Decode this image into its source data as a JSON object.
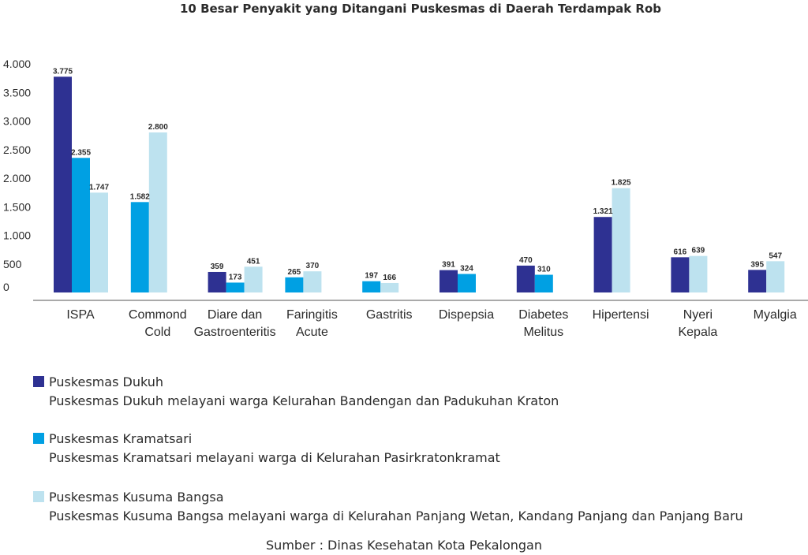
{
  "chart_data": {
    "type": "bar",
    "title": "10 Besar Penyakit yang Ditangani Puskesmas di Daerah Terdampak Rob",
    "categories": [
      [
        "ISPA"
      ],
      [
        "Commond",
        "Cold"
      ],
      [
        "Diare dan",
        "Gastroenteritis"
      ],
      [
        "Faringitis",
        "Acute"
      ],
      [
        "Gastritis"
      ],
      [
        "Dispepsia"
      ],
      [
        "Diabetes",
        "Melitus"
      ],
      [
        "Hipertensi"
      ],
      [
        "Nyeri",
        "Kepala"
      ],
      [
        "Myalgia"
      ]
    ],
    "series": [
      {
        "name": "Puskesmas Dukuh",
        "color": "#2e3192",
        "values": [
          3775,
          null,
          359,
          null,
          null,
          391,
          470,
          1321,
          616,
          395
        ],
        "labels": [
          "3.775",
          null,
          "359",
          null,
          null,
          "391",
          "470",
          "1.321",
          "616",
          "395"
        ]
      },
      {
        "name": "Puskesmas Kramatsari",
        "color": "#00a0e3",
        "values": [
          2355,
          1582,
          173,
          265,
          197,
          324,
          310,
          null,
          null,
          null
        ],
        "labels": [
          "2.355",
          "1.582",
          "173",
          "265",
          "197",
          "324",
          "310",
          null,
          null,
          null
        ]
      },
      {
        "name": "Puskesmas Kusuma Bangsa",
        "color": "#bde2ef",
        "values": [
          1747,
          2800,
          451,
          370,
          166,
          null,
          null,
          1825,
          639,
          547
        ],
        "labels": [
          "1.747",
          "2.800",
          "451",
          "370",
          "166",
          null,
          null,
          "1.825",
          "639",
          "547"
        ]
      }
    ],
    "yticks": [
      {
        "value": 0,
        "label": "0"
      },
      {
        "value": 500,
        "label": "500"
      },
      {
        "value": 1000,
        "label": "1.000"
      },
      {
        "value": 1500,
        "label": "1.500"
      },
      {
        "value": 2000,
        "label": "2.000"
      },
      {
        "value": 2500,
        "label": "2.500"
      },
      {
        "value": 3000,
        "label": "3.000"
      },
      {
        "value": 3500,
        "label": "3.500"
      },
      {
        "value": 4000,
        "label": "4.000"
      }
    ],
    "ylim": [
      0,
      4000
    ],
    "grid": false,
    "legend_position": "bottom-left"
  },
  "legend": [
    {
      "name": "Puskesmas Dukuh",
      "color": "#2e3192",
      "desc": "Puskesmas Dukuh melayani warga Kelurahan Bandengan dan Padukuhan Kraton"
    },
    {
      "name": "Puskesmas Kramatsari",
      "color": "#00a0e3",
      "desc": "Puskesmas Kramatsari melayani warga di Kelurahan Pasirkratonkramat"
    },
    {
      "name": "Puskesmas Kusuma Bangsa",
      "color": "#bde2ef",
      "desc": "Puskesmas Kusuma Bangsa melayani warga di Kelurahan Panjang Wetan, Kandang Panjang dan Panjang Baru"
    }
  ],
  "source": "Sumber : Dinas Kesehatan Kota Pekalongan"
}
